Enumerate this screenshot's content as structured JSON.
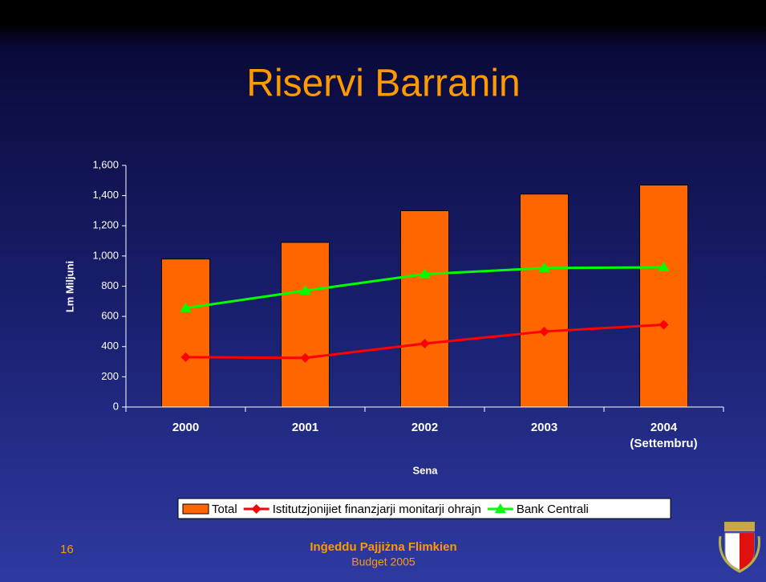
{
  "chart_data": {
    "type": "bar",
    "title": "Riservi Barranin",
    "y_label": "Lm Miljuni",
    "x_label": "Sena",
    "categories": [
      "2000",
      "2001",
      "2002",
      "2003",
      "2004\n(Settembru)"
    ],
    "series": [
      {
        "name": "Total",
        "type": "bar",
        "color": "#ff6600",
        "values": [
          980,
          1090,
          1300,
          1410,
          1470
        ]
      },
      {
        "name": "Istitutzjonijiet finanzjarji monitarji ohrajn",
        "type": "line",
        "marker": "diamond",
        "color": "#ff0000",
        "values": [
          330,
          325,
          420,
          500,
          545
        ]
      },
      {
        "name": "Bank Centrali",
        "type": "line",
        "marker": "triangle",
        "color": "#00ff00",
        "values": [
          655,
          770,
          880,
          920,
          925
        ]
      }
    ],
    "ylim": [
      0,
      1600
    ],
    "yticks": [
      0,
      200,
      400,
      600,
      800,
      {
        "value": 1000,
        "label": "1,000"
      },
      {
        "value": 1200,
        "label": "1,200"
      },
      {
        "value": 1400,
        "label": "1,400"
      },
      {
        "value": 1600,
        "label": "1,600"
      }
    ],
    "legend": "bottom"
  },
  "footer": {
    "page": "16",
    "line1": "Inġeddu Pajjiżna Flimkien",
    "line2": "Budget 2005"
  }
}
